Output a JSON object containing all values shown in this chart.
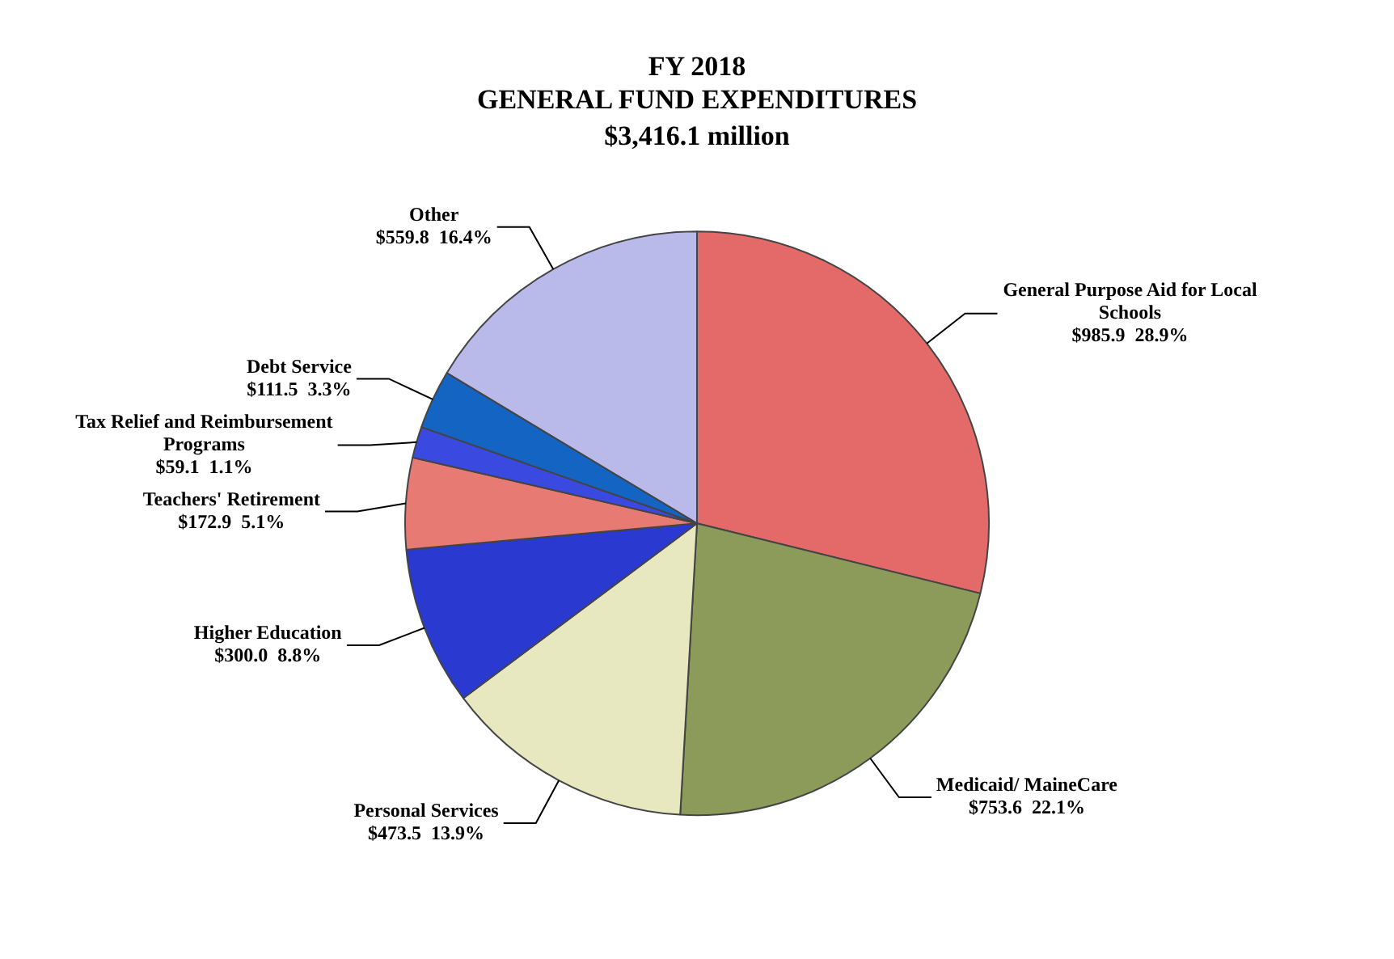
{
  "chart_data": {
    "type": "pie",
    "title": "FY 2018\nGENERAL FUND EXPENDITURES",
    "subtitle": "$3,416.1 million",
    "categories": [
      "General Purpose Aid for Local Schools",
      "Medicaid/ MaineCare",
      "Personal Services",
      "Higher Education",
      "Teachers' Retirement",
      "Tax Relief and Reimbursement Programs",
      "Debt Service",
      "Other"
    ],
    "values": [
      985.9,
      753.6,
      473.5,
      300.0,
      172.9,
      59.1,
      111.5,
      559.8
    ],
    "value_labels": [
      "$985.9  28.9%",
      "$753.6  22.1%",
      "$473.5  13.9%",
      "$300.0  8.8%",
      "$172.9  5.1%",
      "$59.1  1.1%",
      "$111.5  3.3%",
      "$559.8  16.4%"
    ],
    "colors": [
      "#e46a6a",
      "#8c9a5a",
      "#e8e8c0",
      "#2a3ad0",
      "#e87a74",
      "#3a4ae0",
      "#1464c4",
      "#babaea"
    ],
    "legend": false
  }
}
